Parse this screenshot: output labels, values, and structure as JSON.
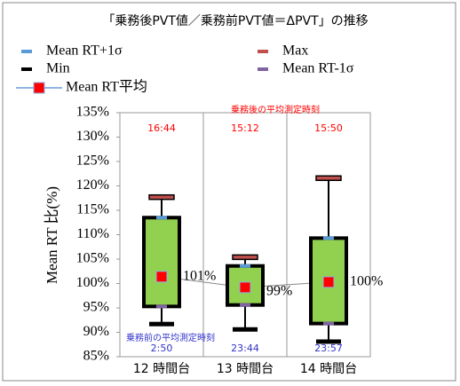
{
  "chart_data": {
    "type": "box",
    "title": "「乗務後PVT値／乗務前PVT値＝ΔPVT」の推移",
    "y_label": "Mean RT 比(%)",
    "categories": [
      "12 時間台",
      "13 時間台",
      "14 時間台"
    ],
    "series": [
      {
        "name": "Mean RT+1σ",
        "color": "#5b9bd5",
        "values": [
          113.5,
          103.6,
          109.3
        ]
      },
      {
        "name": "Max",
        "color": "#c0504d",
        "values": [
          117.6,
          105.3,
          121.5
        ]
      },
      {
        "name": "Min",
        "color": "#000000",
        "values": [
          91.6,
          90.5,
          88.0
        ]
      },
      {
        "name": "Mean RT-1σ",
        "color": "#8064a2",
        "values": [
          95.3,
          95.6,
          91.8
        ]
      },
      {
        "name": "Mean RT平均",
        "color": "#ff0000",
        "line_color": "#8fb4e3",
        "values": [
          101.4,
          99.2,
          100.3
        ],
        "value_labels": [
          "101%",
          "99%",
          "100%"
        ]
      }
    ],
    "box_color": "#92d050",
    "ylim": [
      85,
      135
    ],
    "yticks": [
      {
        "value": 85,
        "label": "85%"
      },
      {
        "value": 90,
        "label": "90%"
      },
      {
        "value": 95,
        "label": "95%"
      },
      {
        "value": 100,
        "label": "100%"
      },
      {
        "value": 105,
        "label": "105%"
      },
      {
        "value": 110,
        "label": "110%"
      },
      {
        "value": 115,
        "label": "115%"
      },
      {
        "value": 120,
        "label": "120%"
      },
      {
        "value": 125,
        "label": "125%"
      },
      {
        "value": 130,
        "label": "130%"
      },
      {
        "value": 135,
        "label": "135%"
      }
    ],
    "after_label": "乗務後の平均測定時刻",
    "after_times": [
      "16:44",
      "15:12",
      "15:50"
    ],
    "after_color": "#ff0000",
    "before_label": "乗務前の平均測定時刻",
    "before_times": [
      "2:50",
      "23:44",
      "23:57"
    ],
    "before_color": "#3333cc"
  }
}
